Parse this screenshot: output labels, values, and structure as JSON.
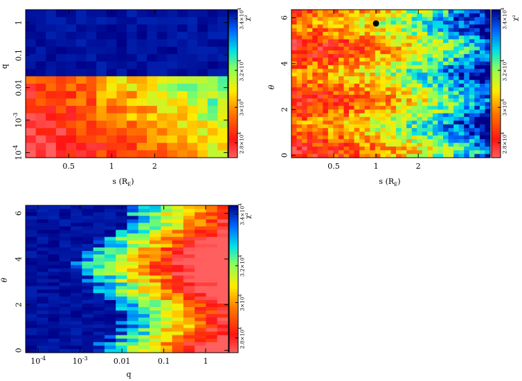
{
  "chart_data": [
    {
      "type": "heatmap",
      "xlabel": "s (R",
      "xlabel_sub": "E",
      "xlabel_close": ")",
      "ylabel": "q",
      "x_axis": "log",
      "y_axis": "log",
      "xlim": [
        0.25,
        6.5
      ],
      "ylim": [
        7e-05,
        2.5
      ],
      "xticks": [
        {
          "v": 0.5,
          "label": "0.5"
        },
        {
          "v": 1,
          "label": "1"
        },
        {
          "v": 2,
          "label": "2"
        }
      ],
      "yticks": [
        {
          "v": 1,
          "label": "1"
        },
        {
          "v": 0.1,
          "label": "0.1"
        },
        {
          "v": 0.01,
          "label": "0.01"
        },
        {
          "v": 0.001,
          "label": "10",
          "sup": "-3"
        },
        {
          "v": 0.0001,
          "label": "10",
          "sup": "-4"
        }
      ],
      "colorbar": {
        "label": "χ²",
        "ticks": [
          {
            "label": "2.8×10",
            "sup": "4"
          },
          {
            "label": "3×10",
            "sup": "4"
          },
          {
            "label": "3.2×10",
            "sup": "4"
          },
          {
            "label": "3.4×10",
            "sup": "4"
          }
        ]
      }
    },
    {
      "type": "heatmap",
      "xlabel": "s (R",
      "xlabel_sub": "E",
      "xlabel_close": ")",
      "ylabel": "θ",
      "x_axis": "log",
      "y_axis": "linear",
      "xlim": [
        0.25,
        6.5
      ],
      "ylim": [
        -0.1,
        6.35
      ],
      "xticks": [
        {
          "v": 0.5,
          "label": "0.5"
        },
        {
          "v": 1,
          "label": "1"
        },
        {
          "v": 2,
          "label": "2"
        }
      ],
      "yticks": [
        {
          "v": 0,
          "label": "0"
        },
        {
          "v": 2,
          "label": "2"
        },
        {
          "v": 4,
          "label": "4"
        },
        {
          "v": 6,
          "label": "6"
        }
      ],
      "marker": {
        "x": 1.0,
        "y": 5.75
      },
      "colorbar": {
        "label": "χ²",
        "ticks": [
          {
            "label": "2.8×10",
            "sup": "4"
          },
          {
            "label": "3×10",
            "sup": "4"
          },
          {
            "label": "3.2×10",
            "sup": "4"
          },
          {
            "label": "3.4×10",
            "sup": "4"
          }
        ]
      }
    },
    {
      "type": "heatmap",
      "xlabel": "q",
      "ylabel": "θ",
      "x_axis": "log",
      "y_axis": "linear",
      "xlim": [
        5e-05,
        3.5
      ],
      "ylim": [
        -0.1,
        6.35
      ],
      "xticks": [
        {
          "v": 0.0001,
          "label": "10",
          "sup": "-4"
        },
        {
          "v": 0.001,
          "label": "10",
          "sup": "-3"
        },
        {
          "v": 0.01,
          "label": "0.01"
        },
        {
          "v": 0.1,
          "label": "0.1"
        },
        {
          "v": 1,
          "label": "1"
        }
      ],
      "yticks": [
        {
          "v": 0,
          "label": "0"
        },
        {
          "v": 2,
          "label": "2"
        },
        {
          "v": 4,
          "label": "4"
        },
        {
          "v": 6,
          "label": "6"
        }
      ],
      "colorbar": {
        "label": "χ²",
        "ticks": [
          {
            "label": "2.8×10",
            "sup": "4"
          },
          {
            "label": "3×10",
            "sup": "4"
          },
          {
            "label": "3.2×10",
            "sup": "4"
          },
          {
            "label": "3.4×10",
            "sup": "4"
          }
        ]
      }
    }
  ]
}
